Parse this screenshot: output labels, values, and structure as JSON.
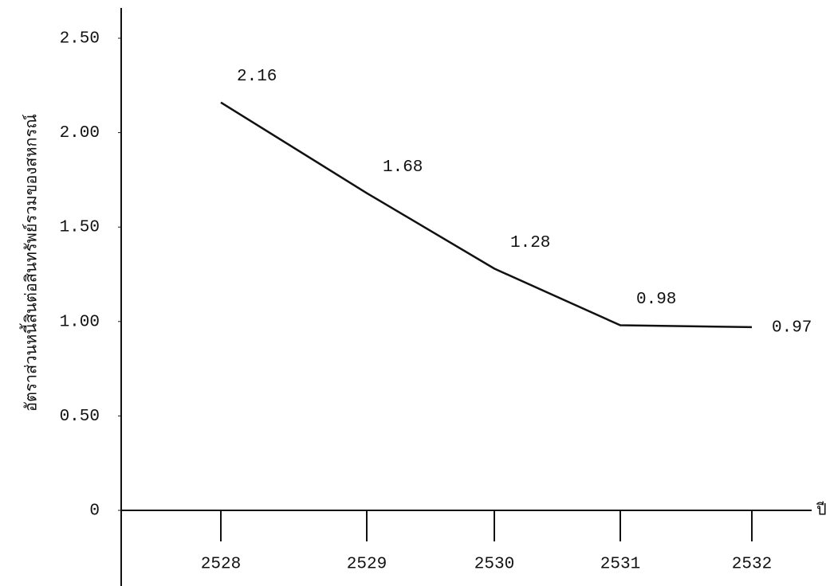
{
  "chart_data": {
    "type": "line",
    "y_label": "อัตราส่วนหนี้สินต่อสินทรัพย์รวมของสหกรณ์",
    "x_label": "ปี",
    "categories": [
      "2528",
      "2529",
      "2530",
      "2531",
      "2532"
    ],
    "series": [
      {
        "color": "#111111",
        "values": [
          2.16,
          1.68,
          1.28,
          0.98,
          0.97
        ]
      }
    ],
    "ylim": [
      0,
      2.5
    ],
    "yticks": [
      0,
      {
        "value": 0.5,
        "label": "0.50"
      },
      {
        "value": 1,
        "label": "1.00"
      },
      {
        "value": 1.5,
        "label": "1.50"
      },
      {
        "value": 2,
        "label": "2.00"
      },
      {
        "value": 2.5,
        "label": "2.50"
      }
    ],
    "grid": false
  }
}
